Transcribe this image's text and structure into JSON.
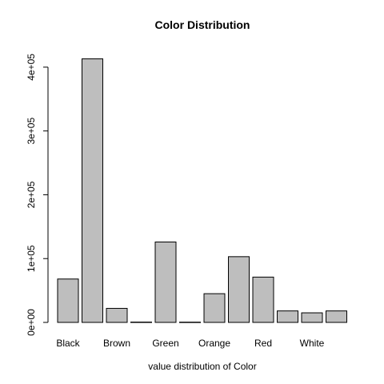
{
  "chart_data": {
    "type": "bar",
    "title": "Color Distribution",
    "xlabel": "value distribution of Color",
    "ylabel": "",
    "categories": [
      "Black",
      "",
      "Brown",
      "",
      "Green",
      "",
      "Orange",
      "",
      "Red",
      "",
      "White",
      ""
    ],
    "values": [
      68000,
      413000,
      22000,
      500,
      126000,
      400,
      45000,
      103000,
      71000,
      18000,
      15000,
      18000
    ],
    "y_ticks": [
      0,
      100000,
      200000,
      300000,
      400000
    ],
    "y_tick_labels": [
      "0e+00",
      "1e+05",
      "2e+05",
      "3e+05",
      "4e+05"
    ],
    "ylim": [
      0,
      430000
    ],
    "grid": false,
    "legend": "none",
    "bar_color": "#bebebe"
  }
}
